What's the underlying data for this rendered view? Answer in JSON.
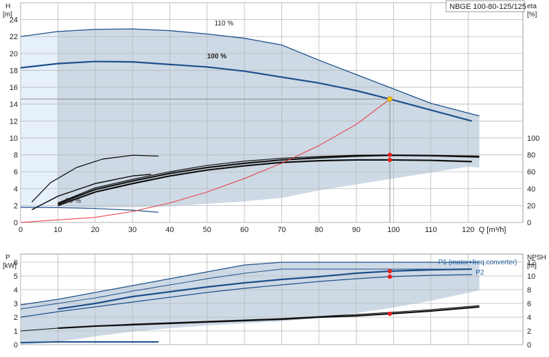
{
  "title": "NBGE 100-80-125/125",
  "colors": {
    "envelope": "#cdd9e5",
    "light_envelope": "#e6f0fa",
    "curve_blue": "#1c4f8a",
    "curve_black": "#111111",
    "system_curve": "#e8333a",
    "duty_point": "#f5c518",
    "marker": "#e81e1e",
    "grid": "#b9b9b9",
    "crosshair": "#8c8c8c"
  },
  "chart_data": [
    {
      "type": "line",
      "name": "top",
      "x_ticks": [
        0,
        10,
        20,
        30,
        40,
        50,
        60,
        70,
        80,
        90,
        100,
        110,
        120
      ],
      "x_unit": "Q [m³/h]",
      "left_axis": {
        "label_top": "H",
        "label_unit": "[m]",
        "ticks": [
          0,
          2,
          4,
          6,
          8,
          10,
          12,
          14,
          16,
          18,
          20,
          22,
          24
        ],
        "range": [
          0,
          26
        ]
      },
      "right_axis": {
        "label_top": "eta",
        "label_unit": "[%]",
        "ticks": [
          0,
          20,
          40,
          60,
          80,
          100
        ],
        "range": [
          0,
          100
        ]
      },
      "envelope": {
        "upper": [
          [
            0,
            22.0
          ],
          [
            10,
            22.6
          ],
          [
            20,
            22.85
          ],
          [
            30,
            22.9
          ],
          [
            40,
            22.7
          ],
          [
            50,
            22.3
          ],
          [
            60,
            21.8
          ],
          [
            70,
            21.0
          ],
          [
            80,
            19.2
          ],
          [
            90,
            17.5
          ],
          [
            100,
            15.8
          ],
          [
            110,
            14.1
          ],
          [
            123,
            12.6
          ]
        ],
        "lower": [
          [
            123,
            6.5
          ],
          [
            120,
            6.6
          ],
          [
            110,
            5.9
          ],
          [
            100,
            5.2
          ],
          [
            90,
            4.5
          ],
          [
            80,
            3.8
          ],
          [
            70,
            2.9
          ],
          [
            60,
            2.5
          ],
          [
            50,
            2.2
          ],
          [
            40,
            1.9
          ],
          [
            30,
            1.8
          ],
          [
            10,
            1.7
          ],
          [
            0,
            1.7
          ]
        ]
      },
      "light_envelope": [
        [
          0,
          22.0
        ],
        [
          10,
          22.6
        ],
        [
          10,
          1.7
        ],
        [
          0,
          1.7
        ]
      ],
      "series": [
        {
          "name": "110 %",
          "role": "head",
          "color": "curve_blue",
          "width": 1.3,
          "points": [
            [
              0,
              22.0
            ],
            [
              10,
              22.6
            ],
            [
              20,
              22.85
            ],
            [
              30,
              22.9
            ],
            [
              40,
              22.7
            ],
            [
              50,
              22.3
            ],
            [
              60,
              21.8
            ],
            [
              70,
              21.0
            ],
            [
              80,
              19.2
            ],
            [
              90,
              17.5
            ],
            [
              100,
              15.8
            ],
            [
              110,
              14.1
            ],
            [
              123,
              12.6
            ]
          ]
        },
        {
          "name": "100 %",
          "role": "head",
          "color": "curve_blue",
          "width": 2.2,
          "points": [
            [
              0,
              18.3
            ],
            [
              10,
              18.8
            ],
            [
              20,
              19.05
            ],
            [
              30,
              19.0
            ],
            [
              40,
              18.7
            ],
            [
              50,
              18.4
            ],
            [
              60,
              17.9
            ],
            [
              70,
              17.2
            ],
            [
              80,
              16.5
            ],
            [
              90,
              15.6
            ],
            [
              99,
              14.6
            ],
            [
              110,
              13.3
            ],
            [
              121,
              12.0
            ]
          ]
        },
        {
          "name": "",
          "role": "head-min",
          "color": "curve_blue",
          "width": 1.2,
          "points": [
            [
              0,
              1.8
            ],
            [
              10,
              1.75
            ],
            [
              20,
              1.65
            ],
            [
              30,
              1.45
            ],
            [
              37,
              1.2
            ]
          ]
        },
        {
          "name": "",
          "role": "eta",
          "color": "curve_black",
          "width": 1.3,
          "points": [
            [
              3,
              2.4
            ],
            [
              8,
              4.7
            ],
            [
              15,
              6.5
            ],
            [
              22,
              7.5
            ],
            [
              30,
              7.95
            ],
            [
              37,
              7.85
            ]
          ]
        },
        {
          "name": "",
          "role": "eta",
          "color": "curve_black",
          "width": 1.5,
          "points": [
            [
              3,
              1.5
            ],
            [
              10,
              3.1
            ],
            [
              20,
              4.6
            ],
            [
              30,
              5.5
            ],
            [
              35,
              5.7
            ]
          ]
        },
        {
          "name": "",
          "role": "eta",
          "color": "curve_black",
          "width": 2.2,
          "points": [
            [
              10,
              2.2
            ],
            [
              20,
              3.9
            ],
            [
              30,
              4.9
            ],
            [
              40,
              5.8
            ],
            [
              50,
              6.5
            ],
            [
              60,
              7.0
            ],
            [
              70,
              7.4
            ],
            [
              80,
              7.65
            ],
            [
              90,
              7.85
            ],
            [
              99,
              7.95
            ],
            [
              110,
              7.9
            ],
            [
              123,
              7.75
            ]
          ]
        },
        {
          "name": "",
          "role": "eta",
          "color": "curve_black",
          "width": 2.2,
          "points": [
            [
              10,
              2.0
            ],
            [
              20,
              3.6
            ],
            [
              30,
              4.6
            ],
            [
              40,
              5.5
            ],
            [
              50,
              6.2
            ],
            [
              60,
              6.7
            ],
            [
              70,
              7.1
            ],
            [
              80,
              7.3
            ],
            [
              90,
              7.4
            ],
            [
              99,
              7.4
            ],
            [
              110,
              7.35
            ],
            [
              121,
              7.2
            ]
          ]
        },
        {
          "name": "",
          "role": "eta",
          "color": "curve_black",
          "width": 1.2,
          "points": [
            [
              10,
              2.3
            ],
            [
              20,
              4.1
            ],
            [
              30,
              5.1
            ],
            [
              40,
              6.0
            ],
            [
              50,
              6.75
            ],
            [
              60,
              7.25
            ],
            [
              70,
              7.6
            ],
            [
              80,
              7.8
            ],
            [
              90,
              7.95
            ],
            [
              99,
              8.0
            ],
            [
              110,
              7.95
            ],
            [
              123,
              7.85
            ]
          ]
        },
        {
          "name": "",
          "role": "system",
          "color": "system_curve",
          "width": 1,
          "points": [
            [
              0,
              0
            ],
            [
              10,
              0.3
            ],
            [
              20,
              0.6
            ],
            [
              30,
              1.3
            ],
            [
              40,
              2.3
            ],
            [
              50,
              3.6
            ],
            [
              60,
              5.2
            ],
            [
              70,
              7.0
            ],
            [
              80,
              9.1
            ],
            [
              90,
              11.6
            ],
            [
              99,
              14.6
            ]
          ]
        }
      ],
      "duty_point": {
        "x": 99,
        "y": 14.6
      },
      "markers": [
        {
          "x": 99,
          "y": 8.0
        },
        {
          "x": 99,
          "y": 7.4
        }
      ],
      "crosshair": {
        "x": 99,
        "y": 14.6
      },
      "labels": [
        {
          "text": "110 %",
          "x": 52,
          "y": 23.3
        },
        {
          "text": "100 %",
          "x": 50,
          "y": 19.4
        },
        {
          "text": "30 %",
          "x": 12,
          "y": 2.3
        }
      ]
    },
    {
      "type": "line",
      "name": "bottom",
      "left_axis": {
        "label_top": "P",
        "label_unit": "[kW]",
        "ticks": [
          0,
          1,
          2,
          3,
          4,
          5,
          6
        ],
        "range": [
          0,
          6.6
        ]
      },
      "right_axis": {
        "label_top": "NPSH",
        "label_unit": "[m]",
        "ticks": [
          0,
          2,
          4,
          6,
          8,
          10,
          12
        ],
        "range": [
          0,
          13.2
        ]
      },
      "envelope": {
        "upper": [
          [
            0,
            2.9
          ],
          [
            10,
            3.3
          ],
          [
            20,
            3.8
          ],
          [
            30,
            4.3
          ],
          [
            40,
            4.8
          ],
          [
            50,
            5.3
          ],
          [
            60,
            5.8
          ],
          [
            70,
            6.0
          ],
          [
            80,
            6.0
          ],
          [
            90,
            6.0
          ],
          [
            100,
            6.0
          ],
          [
            110,
            6.0
          ],
          [
            123,
            6.0
          ]
        ],
        "lower": [
          [
            123,
            3.95
          ],
          [
            110,
            3.2
          ],
          [
            100,
            2.7
          ],
          [
            90,
            2.3
          ],
          [
            80,
            1.95
          ],
          [
            70,
            1.7
          ],
          [
            60,
            1.55
          ],
          [
            50,
            1.4
          ],
          [
            40,
            1.2
          ],
          [
            30,
            0.95
          ],
          [
            20,
            0.6
          ],
          [
            10,
            0.2
          ],
          [
            0,
            0.0
          ]
        ]
      },
      "series": [
        {
          "name": "",
          "role": "P1-110",
          "color": "curve_blue",
          "width": 1.2,
          "points": [
            [
              0,
              2.9
            ],
            [
              10,
              3.3
            ],
            [
              20,
              3.8
            ],
            [
              30,
              4.3
            ],
            [
              40,
              4.8
            ],
            [
              50,
              5.3
            ],
            [
              60,
              5.8
            ],
            [
              70,
              6.0
            ],
            [
              80,
              6.0
            ],
            [
              90,
              6.0
            ],
            [
              100,
              6.0
            ],
            [
              110,
              6.0
            ],
            [
              123,
              6.0
            ]
          ]
        },
        {
          "name": "",
          "role": "P1-100",
          "color": "curve_blue",
          "width": 0.9,
          "points": [
            [
              0,
              2.6
            ],
            [
              10,
              3.0
            ],
            [
              20,
              3.4
            ],
            [
              30,
              3.9
            ],
            [
              40,
              4.35
            ],
            [
              50,
              4.8
            ],
            [
              60,
              5.2
            ],
            [
              70,
              5.5
            ],
            [
              80,
              5.5
            ],
            [
              90,
              5.5
            ],
            [
              99,
              5.5
            ],
            [
              110,
              5.5
            ],
            [
              121,
              5.5
            ]
          ]
        },
        {
          "name": "",
          "role": "P2-110",
          "color": "curve_blue",
          "width": 2.2,
          "points": [
            [
              10,
              2.6
            ],
            [
              20,
              3.0
            ],
            [
              30,
              3.5
            ],
            [
              40,
              3.85
            ],
            [
              50,
              4.2
            ],
            [
              60,
              4.5
            ],
            [
              70,
              4.75
            ],
            [
              80,
              4.95
            ],
            [
              90,
              5.2
            ],
            [
              99,
              5.35
            ],
            [
              110,
              5.45
            ],
            [
              121,
              5.5
            ]
          ]
        },
        {
          "name": "",
          "role": "P2-100",
          "color": "curve_blue",
          "width": 1.2,
          "points": [
            [
              0,
              2.0
            ],
            [
              10,
              2.4
            ],
            [
              20,
              2.75
            ],
            [
              30,
              3.1
            ],
            [
              40,
              3.45
            ],
            [
              50,
              3.8
            ],
            [
              60,
              4.1
            ],
            [
              70,
              4.35
            ],
            [
              80,
              4.6
            ],
            [
              90,
              4.8
            ],
            [
              99,
              4.95
            ],
            [
              110,
              5.05
            ],
            [
              121,
              5.1
            ]
          ]
        },
        {
          "name": "",
          "role": "npsh",
          "color": "curve_black",
          "width": 2.2,
          "points": [
            [
              10,
              1.2
            ],
            [
              20,
              1.35
            ],
            [
              30,
              1.45
            ],
            [
              40,
              1.55
            ],
            [
              50,
              1.65
            ],
            [
              60,
              1.75
            ],
            [
              70,
              1.85
            ],
            [
              80,
              2.0
            ],
            [
              90,
              2.1
            ],
            [
              99,
              2.25
            ],
            [
              110,
              2.45
            ],
            [
              123,
              2.75
            ]
          ]
        },
        {
          "name": "",
          "role": "npsh-110",
          "color": "curve_black",
          "width": 1.0,
          "points": [
            [
              0,
              1.0
            ],
            [
              10,
              1.2
            ],
            [
              20,
              1.35
            ],
            [
              30,
              1.5
            ],
            [
              40,
              1.6
            ],
            [
              50,
              1.7
            ],
            [
              60,
              1.8
            ],
            [
              70,
              1.9
            ],
            [
              80,
              2.05
            ],
            [
              90,
              2.2
            ],
            [
              99,
              2.35
            ],
            [
              110,
              2.55
            ],
            [
              123,
              2.85
            ]
          ]
        },
        {
          "name": "",
          "role": "P-min",
          "color": "curve_blue",
          "width": 2.0,
          "points": [
            [
              0,
              0.15
            ],
            [
              10,
              0.2
            ],
            [
              20,
              0.2
            ],
            [
              37,
              0.2
            ]
          ]
        }
      ],
      "markers": [
        {
          "x": 99,
          "y": 5.35
        },
        {
          "x": 99,
          "y": 4.95
        },
        {
          "x": 99,
          "y": 2.25
        }
      ],
      "legend_labels": [
        {
          "text": "P1 (motor+freq.converter)",
          "x": 112,
          "y": 5.85
        },
        {
          "text": "P2",
          "x": 122,
          "y": 5.1
        }
      ]
    }
  ]
}
